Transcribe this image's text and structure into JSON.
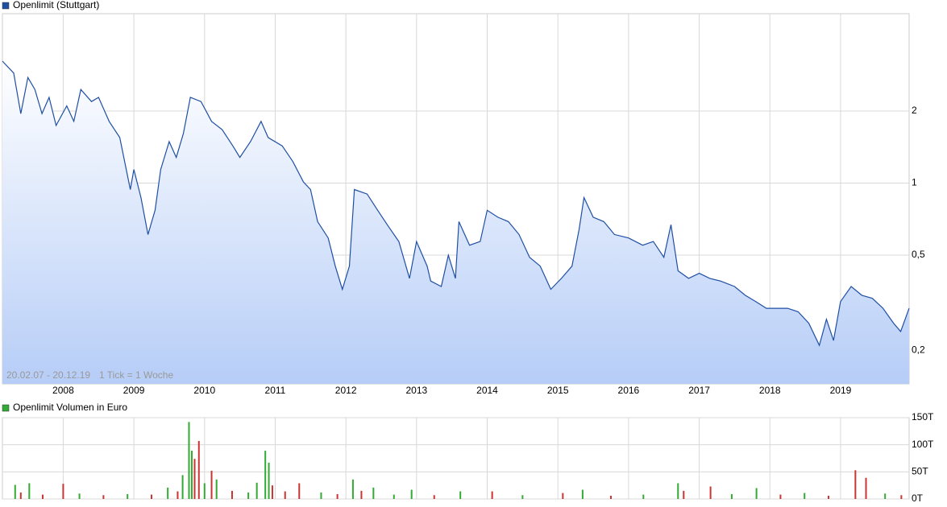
{
  "chart_data": [
    {
      "type": "line",
      "log_scale": true,
      "grid": true,
      "legend": "top-left",
      "date_range": "20.02.07 - 20.12.19",
      "tick_note": "1 Tick = 1 Woche",
      "x": [
        2007.14,
        2007.3,
        2007.4,
        2007.5,
        2007.6,
        2007.7,
        2007.8,
        2007.9,
        2008.05,
        2008.15,
        2008.25,
        2008.4,
        2008.5,
        2008.65,
        2008.8,
        2008.95,
        2009.0,
        2009.1,
        2009.2,
        2009.3,
        2009.38,
        2009.5,
        2009.6,
        2009.7,
        2009.8,
        2009.95,
        2010.1,
        2010.25,
        2010.4,
        2010.5,
        2010.65,
        2010.8,
        2010.9,
        2011.1,
        2011.25,
        2011.4,
        2011.5,
        2011.6,
        2011.75,
        2011.85,
        2011.95,
        2012.05,
        2012.12,
        2012.3,
        2012.45,
        2012.6,
        2012.75,
        2012.9,
        2013.0,
        2013.15,
        2013.2,
        2013.35,
        2013.45,
        2013.55,
        2013.6,
        2013.75,
        2013.9,
        2014.0,
        2014.15,
        2014.3,
        2014.45,
        2014.6,
        2014.75,
        2014.9,
        2015.05,
        2015.2,
        2015.3,
        2015.37,
        2015.5,
        2015.65,
        2015.8,
        2016.0,
        2016.2,
        2016.35,
        2016.5,
        2016.6,
        2016.7,
        2016.85,
        2017.0,
        2017.15,
        2017.3,
        2017.5,
        2017.65,
        2017.8,
        2017.95,
        2018.1,
        2018.25,
        2018.4,
        2018.55,
        2018.7,
        2018.8,
        2018.9,
        2019.0,
        2019.15,
        2019.3,
        2019.45,
        2019.6,
        2019.75,
        2019.85,
        2019.97
      ],
      "series": [
        {
          "name": "Openlimit (Stuttgart)",
          "color": "#1f4fa3",
          "values": [
            3.23,
            2.88,
            1.95,
            2.76,
            2.46,
            1.95,
            2.28,
            1.74,
            2.1,
            1.81,
            2.46,
            2.19,
            2.28,
            1.81,
            1.55,
            0.94,
            1.14,
            0.87,
            0.61,
            0.77,
            1.14,
            1.49,
            1.28,
            1.61,
            2.28,
            2.19,
            1.81,
            1.67,
            1.43,
            1.28,
            1.49,
            1.81,
            1.55,
            1.43,
            1.23,
            1.01,
            0.94,
            0.69,
            0.59,
            0.45,
            0.36,
            0.45,
            0.94,
            0.9,
            0.77,
            0.66,
            0.57,
            0.4,
            0.57,
            0.45,
            0.39,
            0.37,
            0.5,
            0.4,
            0.69,
            0.55,
            0.57,
            0.77,
            0.72,
            0.69,
            0.61,
            0.49,
            0.45,
            0.36,
            0.4,
            0.45,
            0.64,
            0.87,
            0.72,
            0.69,
            0.61,
            0.59,
            0.55,
            0.57,
            0.49,
            0.67,
            0.43,
            0.4,
            0.42,
            0.4,
            0.39,
            0.37,
            0.34,
            0.32,
            0.3,
            0.3,
            0.3,
            0.29,
            0.26,
            0.21,
            0.27,
            0.22,
            0.32,
            0.37,
            0.34,
            0.33,
            0.3,
            0.26,
            0.24,
            0.3
          ]
        }
      ],
      "xlim": [
        2007.14,
        2019.97
      ],
      "xticks": [
        2008,
        2009,
        2010,
        2011,
        2012,
        2013,
        2014,
        2015,
        2016,
        2017,
        2018,
        2019
      ],
      "ylim": [
        0.145,
        5.1
      ],
      "yticks": [
        {
          "value": 0.2,
          "label": "0,2"
        },
        {
          "value": 0.5,
          "label": "0,5"
        },
        1,
        2
      ]
    },
    {
      "type": "bar",
      "grid": true,
      "legend": "top-left",
      "x": [
        2007.32,
        2007.4,
        2007.52,
        2007.71,
        2008.0,
        2008.23,
        2008.57,
        2008.91,
        2009.25,
        2009.48,
        2009.62,
        2009.69,
        2009.78,
        2009.82,
        2009.86,
        2009.92,
        2010.0,
        2010.1,
        2010.17,
        2010.39,
        2010.62,
        2010.74,
        2010.86,
        2010.91,
        2010.96,
        2011.14,
        2011.34,
        2011.65,
        2011.88,
        2012.1,
        2012.22,
        2012.39,
        2012.68,
        2012.93,
        2013.25,
        2013.62,
        2014.07,
        2014.5,
        2015.07,
        2015.35,
        2015.75,
        2016.21,
        2016.7,
        2016.78,
        2017.16,
        2017.46,
        2017.81,
        2018.15,
        2018.49,
        2018.83,
        2019.21,
        2019.36,
        2019.63,
        2019.86
      ],
      "series": [
        {
          "name": "Openlimit Volumen in Euro",
          "color": "#33aa33",
          "values": [
            26000,
            12000,
            29000,
            8000,
            28000,
            10000,
            7000,
            9000,
            8000,
            21000,
            14000,
            44000,
            142000,
            89000,
            74000,
            107000,
            29000,
            52000,
            36000,
            15000,
            12000,
            30000,
            89000,
            67000,
            25000,
            14000,
            29000,
            12000,
            9000,
            36000,
            15000,
            21000,
            8000,
            17000,
            7000,
            14000,
            14000,
            7000,
            11000,
            17000,
            6000,
            8000,
            29000,
            15000,
            23000,
            9000,
            20000,
            8000,
            11000,
            6000,
            53000,
            39000,
            10000,
            7000
          ]
        }
      ],
      "bar_colors": [
        "#33aa33",
        "#cc3333",
        "#33aa33",
        "#cc3333",
        "#cc3333",
        "#33aa33",
        "#cc3333",
        "#33aa33",
        "#cc3333",
        "#33aa33",
        "#cc3333",
        "#33aa33",
        "#33aa33",
        "#33aa33",
        "#cc3333",
        "#cc3333",
        "#33aa33",
        "#cc3333",
        "#33aa33",
        "#cc3333",
        "#33aa33",
        "#33aa33",
        "#33aa33",
        "#33aa33",
        "#cc3333",
        "#cc3333",
        "#cc3333",
        "#33aa33",
        "#cc3333",
        "#33aa33",
        "#cc3333",
        "#33aa33",
        "#33aa33",
        "#33aa33",
        "#cc3333",
        "#33aa33",
        "#cc3333",
        "#33aa33",
        "#cc3333",
        "#33aa33",
        "#cc3333",
        "#33aa33",
        "#33aa33",
        "#cc3333",
        "#cc3333",
        "#33aa33",
        "#33aa33",
        "#cc3333",
        "#33aa33",
        "#cc3333",
        "#cc3333",
        "#cc3333",
        "#33aa33",
        "#cc3333"
      ],
      "xlim": [
        2007.14,
        2019.97
      ],
      "xticks": [
        2008,
        2009,
        2010,
        2011,
        2012,
        2013,
        2014,
        2015,
        2016,
        2017,
        2018,
        2019
      ],
      "ylim": [
        0,
        150000
      ],
      "yticks": [
        {
          "value": 0,
          "label": "0T"
        },
        {
          "value": 50000,
          "label": "50T"
        },
        {
          "value": 100000,
          "label": "100T"
        },
        {
          "value": 150000,
          "label": "150T"
        }
      ]
    }
  ]
}
